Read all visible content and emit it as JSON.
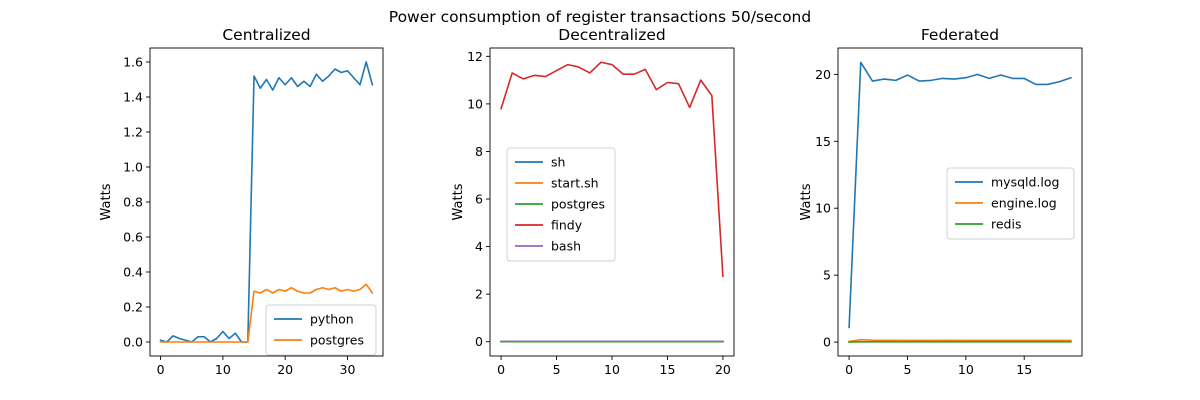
{
  "suptitle": "Power consumption of register transactions 50/second",
  "chart_data": [
    {
      "type": "line",
      "title": "Centralized",
      "xlabel": "",
      "ylabel": "Watts",
      "xlim": [
        -1.7,
        35.7
      ],
      "ylim": [
        -0.08,
        1.68
      ],
      "xticks": [
        0,
        10,
        20,
        30
      ],
      "yticks": [
        0.0,
        0.2,
        0.4,
        0.6,
        0.8,
        1.0,
        1.2,
        1.4,
        1.6
      ],
      "ytick_decimals": 1,
      "grid": false,
      "legend_position": "lower-right",
      "series": [
        {
          "name": "python",
          "color": "#1f77b4",
          "x": [
            0,
            1,
            2,
            3,
            4,
            5,
            6,
            7,
            8,
            9,
            10,
            11,
            12,
            13,
            14,
            15,
            16,
            17,
            18,
            19,
            20,
            21,
            22,
            23,
            24,
            25,
            26,
            27,
            28,
            29,
            30,
            31,
            32,
            33,
            34
          ],
          "values": [
            0.01,
            0.0,
            0.035,
            0.02,
            0.01,
            0.0,
            0.03,
            0.03,
            0.0,
            0.02,
            0.06,
            0.02,
            0.05,
            0.0,
            0.0,
            1.52,
            1.45,
            1.5,
            1.44,
            1.51,
            1.47,
            1.51,
            1.46,
            1.49,
            1.46,
            1.53,
            1.49,
            1.52,
            1.56,
            1.54,
            1.55,
            1.51,
            1.47,
            1.6,
            1.47
          ]
        },
        {
          "name": "postgres",
          "color": "#ff7f0e",
          "x": [
            0,
            1,
            2,
            3,
            4,
            5,
            6,
            7,
            8,
            9,
            10,
            11,
            12,
            13,
            14,
            15,
            16,
            17,
            18,
            19,
            20,
            21,
            22,
            23,
            24,
            25,
            26,
            27,
            28,
            29,
            30,
            31,
            32,
            33,
            34
          ],
          "values": [
            0.0,
            0.0,
            0.0,
            0.0,
            0.0,
            0.0,
            0.0,
            0.0,
            0.0,
            0.0,
            0.0,
            0.0,
            0.0,
            0.0,
            0.0,
            0.29,
            0.28,
            0.3,
            0.28,
            0.3,
            0.29,
            0.31,
            0.29,
            0.28,
            0.28,
            0.3,
            0.31,
            0.3,
            0.31,
            0.29,
            0.3,
            0.29,
            0.3,
            0.33,
            0.28
          ]
        }
      ]
    },
    {
      "type": "line",
      "title": "Decentralized",
      "xlabel": "",
      "ylabel": "Watts",
      "xlim": [
        -1.0,
        21.0
      ],
      "ylim": [
        -0.6,
        12.35
      ],
      "xticks": [
        0,
        5,
        10,
        15,
        20
      ],
      "yticks": [
        0,
        2,
        4,
        6,
        8,
        10,
        12
      ],
      "ytick_decimals": 0,
      "grid": false,
      "legend_position": "center-left",
      "series": [
        {
          "name": "sh",
          "color": "#1f77b4",
          "x": [
            0,
            1,
            2,
            3,
            4,
            5,
            6,
            7,
            8,
            9,
            10,
            11,
            12,
            13,
            14,
            15,
            16,
            17,
            18,
            19,
            20
          ],
          "values": [
            0.02,
            0.02,
            0.02,
            0.02,
            0.02,
            0.02,
            0.02,
            0.02,
            0.02,
            0.02,
            0.02,
            0.02,
            0.02,
            0.02,
            0.02,
            0.02,
            0.02,
            0.02,
            0.02,
            0.02,
            0.02
          ]
        },
        {
          "name": "start.sh",
          "color": "#ff7f0e",
          "x": [
            0,
            1,
            2,
            3,
            4,
            5,
            6,
            7,
            8,
            9,
            10,
            11,
            12,
            13,
            14,
            15,
            16,
            17,
            18,
            19,
            20
          ],
          "values": [
            0,
            0,
            0,
            0,
            0,
            0,
            0,
            0,
            0,
            0,
            0,
            0,
            0,
            0,
            0,
            0,
            0,
            0,
            0,
            0,
            0
          ]
        },
        {
          "name": "postgres",
          "color": "#2ca02c",
          "x": [
            0,
            1,
            2,
            3,
            4,
            5,
            6,
            7,
            8,
            9,
            10,
            11,
            12,
            13,
            14,
            15,
            16,
            17,
            18,
            19,
            20
          ],
          "values": [
            0,
            0,
            0,
            0,
            0,
            0,
            0,
            0,
            0,
            0,
            0,
            0,
            0,
            0,
            0,
            0,
            0,
            0,
            0,
            0,
            0
          ]
        },
        {
          "name": "findy",
          "color": "#d62728",
          "x": [
            0,
            1,
            2,
            3,
            4,
            5,
            6,
            7,
            8,
            9,
            10,
            11,
            12,
            13,
            14,
            15,
            16,
            17,
            18,
            19,
            20
          ],
          "values": [
            9.8,
            11.3,
            11.05,
            11.2,
            11.15,
            11.4,
            11.65,
            11.55,
            11.3,
            11.75,
            11.65,
            11.25,
            11.25,
            11.45,
            10.6,
            10.9,
            10.85,
            9.85,
            11.0,
            10.35,
            2.75
          ]
        },
        {
          "name": "bash",
          "color": "#9467bd",
          "x": [
            0,
            1,
            2,
            3,
            4,
            5,
            6,
            7,
            8,
            9,
            10,
            11,
            12,
            13,
            14,
            15,
            16,
            17,
            18,
            19,
            20
          ],
          "values": [
            0.02,
            0.02,
            0.02,
            0.02,
            0.02,
            0.02,
            0.02,
            0.02,
            0.02,
            0.02,
            0.02,
            0.02,
            0.02,
            0.02,
            0.02,
            0.02,
            0.02,
            0.02,
            0.02,
            0.02,
            0.02
          ]
        }
      ]
    },
    {
      "type": "line",
      "title": "Federated",
      "xlabel": "",
      "ylabel": "Watts",
      "xlim": [
        -0.95,
        19.95
      ],
      "ylim": [
        -1.04,
        21.97
      ],
      "xticks": [
        0,
        5,
        10,
        15
      ],
      "yticks": [
        0,
        5,
        10,
        15,
        20
      ],
      "ytick_decimals": 0,
      "grid": false,
      "legend_position": "center-right",
      "series": [
        {
          "name": "mysqld.log",
          "color": "#1f77b4",
          "x": [
            0,
            1,
            2,
            3,
            4,
            5,
            6,
            7,
            8,
            9,
            10,
            11,
            12,
            13,
            14,
            15,
            16,
            17,
            18,
            19
          ],
          "values": [
            1.1,
            20.9,
            19.5,
            19.65,
            19.55,
            19.95,
            19.5,
            19.55,
            19.7,
            19.65,
            19.75,
            20.0,
            19.7,
            19.95,
            19.7,
            19.7,
            19.25,
            19.25,
            19.45,
            19.75
          ]
        },
        {
          "name": "engine.log",
          "color": "#ff7f0e",
          "x": [
            0,
            1,
            2,
            3,
            4,
            5,
            6,
            7,
            8,
            9,
            10,
            11,
            12,
            13,
            14,
            15,
            16,
            17,
            18,
            19
          ],
          "values": [
            0.05,
            0.18,
            0.14,
            0.13,
            0.13,
            0.12,
            0.12,
            0.12,
            0.13,
            0.13,
            0.12,
            0.12,
            0.12,
            0.12,
            0.12,
            0.12,
            0.12,
            0.12,
            0.12,
            0.12
          ]
        },
        {
          "name": "redis",
          "color": "#2ca02c",
          "x": [
            0,
            1,
            2,
            3,
            4,
            5,
            6,
            7,
            8,
            9,
            10,
            11,
            12,
            13,
            14,
            15,
            16,
            17,
            18,
            19
          ],
          "values": [
            0.0,
            0.02,
            0.02,
            0.02,
            0.02,
            0.02,
            0.02,
            0.02,
            0.02,
            0.02,
            0.02,
            0.02,
            0.02,
            0.02,
            0.02,
            0.02,
            0.02,
            0.02,
            0.02,
            0.02
          ]
        }
      ]
    }
  ]
}
